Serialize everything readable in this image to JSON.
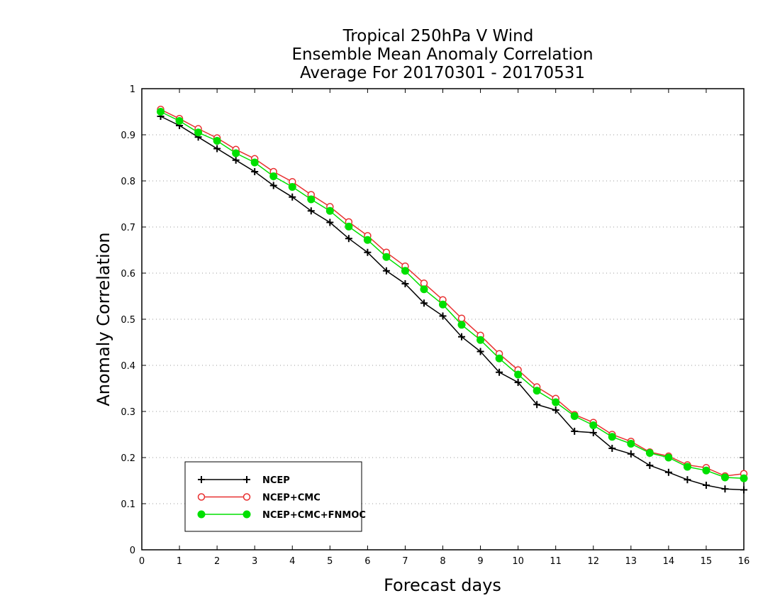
{
  "chart_data": {
    "type": "line",
    "title": [
      "Tropical 250hPa V Wind",
      "Ensemble Mean Anomaly Correlation",
      "Average For 20170301 - 20170531"
    ],
    "xlabel": "Forecast days",
    "ylabel": "Anomaly Correlation",
    "xlim": [
      0,
      16
    ],
    "ylim": [
      0,
      1
    ],
    "xticks": [
      "0",
      "1",
      "2",
      "3",
      "4",
      "5",
      "6",
      "7",
      "8",
      "9",
      "10",
      "11",
      "12",
      "13",
      "14",
      "15",
      "16"
    ],
    "yticks": [
      "0",
      "0.1",
      "0.2",
      "0.3",
      "0.4",
      "0.5",
      "0.6",
      "0.7",
      "0.8",
      "0.9",
      "1"
    ],
    "grid": "horizontal-dotted",
    "legend_position": "bottom-left",
    "x": [
      0.5,
      1,
      1.5,
      2,
      2.5,
      3,
      3.5,
      4,
      4.5,
      5,
      5.5,
      6,
      6.5,
      7,
      7.5,
      8,
      8.5,
      9,
      9.5,
      10,
      10.5,
      11,
      11.5,
      12,
      12.5,
      13,
      13.5,
      14,
      14.5,
      15,
      15.5,
      16
    ],
    "series": [
      {
        "name": "NCEP",
        "color": "#000000",
        "marker": "plus",
        "values": [
          0.94,
          0.92,
          0.895,
          0.87,
          0.845,
          0.82,
          0.79,
          0.765,
          0.735,
          0.71,
          0.675,
          0.645,
          0.605,
          0.577,
          0.535,
          0.507,
          0.462,
          0.43,
          0.385,
          0.363,
          0.315,
          0.303,
          0.257,
          0.254,
          0.22,
          0.208,
          0.183,
          0.168,
          0.152,
          0.14,
          0.132,
          0.13
        ]
      },
      {
        "name": "NCEP+CMC",
        "color": "#e83030",
        "marker": "open-circle",
        "values": [
          0.955,
          0.935,
          0.913,
          0.893,
          0.868,
          0.848,
          0.82,
          0.798,
          0.77,
          0.744,
          0.711,
          0.681,
          0.645,
          0.615,
          0.578,
          0.542,
          0.502,
          0.465,
          0.425,
          0.39,
          0.353,
          0.328,
          0.293,
          0.276,
          0.25,
          0.235,
          0.212,
          0.203,
          0.184,
          0.178,
          0.16,
          0.165
        ]
      },
      {
        "name": "NCEP+CMC+FNMOC",
        "color": "#00e000",
        "marker": "filled-circle",
        "values": [
          0.95,
          0.93,
          0.905,
          0.887,
          0.86,
          0.84,
          0.81,
          0.787,
          0.76,
          0.735,
          0.701,
          0.672,
          0.635,
          0.605,
          0.565,
          0.532,
          0.488,
          0.455,
          0.415,
          0.38,
          0.345,
          0.32,
          0.29,
          0.27,
          0.245,
          0.23,
          0.21,
          0.2,
          0.18,
          0.172,
          0.157,
          0.155
        ]
      }
    ]
  }
}
